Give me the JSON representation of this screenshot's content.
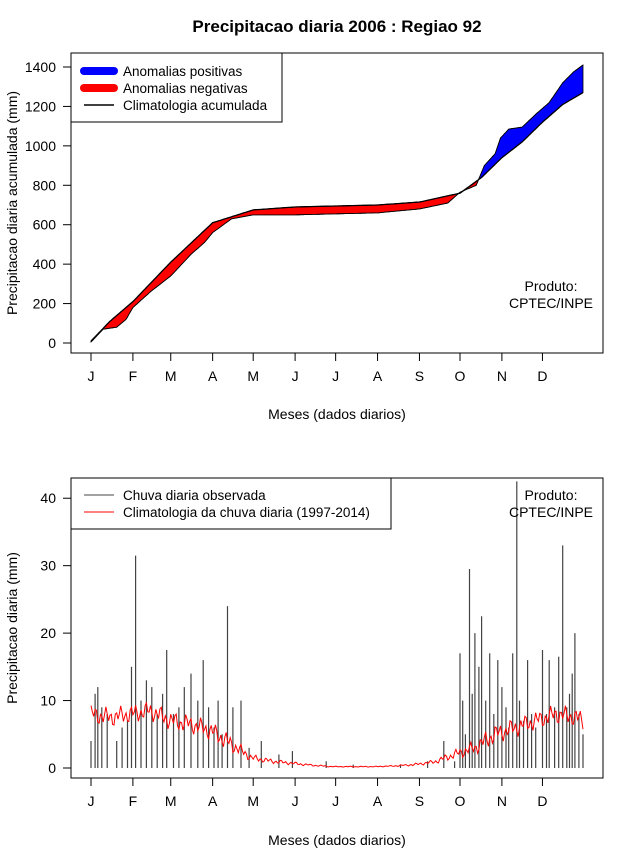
{
  "chart_data": [
    {
      "type": "area",
      "title": "Precipitacao diaria 2006 : Regiao 92",
      "xlabel": "Meses (dados diarios)",
      "ylabel": "Precipitacao diaria acumulada (mm)",
      "ylim": [
        0,
        1400
      ],
      "xlim_days": [
        1,
        365
      ],
      "yticks": [
        0,
        200,
        400,
        600,
        800,
        1000,
        1200,
        1400
      ],
      "month_ticks": [
        "J",
        "F",
        "M",
        "A",
        "M",
        "J",
        "J",
        "A",
        "S",
        "O",
        "N",
        "D"
      ],
      "legend": [
        "Anomalias positivas",
        "Anomalias negativas",
        "Climatologia acumulada"
      ],
      "colors": {
        "positive": "#0000ff",
        "negative": "#ff0000",
        "climatology": "#000000"
      },
      "annotation": [
        "Produto:",
        "CPTEC/INPE"
      ],
      "series": [
        {
          "name": "Climatologia acumulada",
          "x": [
            1,
            15,
            32,
            60,
            91,
            121,
            152,
            182,
            213,
            244,
            274,
            290,
            305,
            320,
            335,
            350,
            365
          ],
          "values": [
            10,
            110,
            210,
            410,
            610,
            675,
            690,
            695,
            700,
            715,
            760,
            840,
            940,
            1020,
            1120,
            1210,
            1270
          ]
        },
        {
          "name": "Precipitacao observada acumulada",
          "x": [
            1,
            10,
            20,
            27,
            32,
            45,
            60,
            75,
            85,
            91,
            105,
            121,
            152,
            182,
            213,
            244,
            265,
            274,
            286,
            292,
            300,
            304,
            310,
            320,
            330,
            340,
            350,
            358,
            365
          ],
          "values": [
            5,
            70,
            80,
            120,
            180,
            260,
            340,
            450,
            510,
            560,
            630,
            650,
            650,
            655,
            660,
            680,
            710,
            765,
            800,
            900,
            960,
            1040,
            1085,
            1095,
            1160,
            1220,
            1320,
            1375,
            1410
          ]
        }
      ]
    },
    {
      "type": "bar",
      "xlabel": "Meses (dados diarios)",
      "ylabel": "Precipitacao diaria (mm)",
      "ylim": [
        0,
        43
      ],
      "yticks": [
        0,
        10,
        20,
        30,
        40
      ],
      "month_ticks": [
        "J",
        "F",
        "M",
        "A",
        "M",
        "J",
        "J",
        "A",
        "S",
        "O",
        "N",
        "D"
      ],
      "legend": [
        "Chuva diaria observada",
        "Climatologia da chuva diaria (1997-2014)"
      ],
      "colors": {
        "observed": "#444444",
        "climatology": "#ff0000"
      },
      "annotation": [
        "Produto:",
        "CPTEC/INPE"
      ],
      "series": [
        {
          "name": "Chuva diaria observada",
          "x": [
            1,
            4,
            6,
            9,
            13,
            20,
            24,
            28,
            31,
            34,
            38,
            42,
            46,
            50,
            54,
            57,
            62,
            66,
            70,
            75,
            80,
            84,
            88,
            92,
            95,
            98,
            102,
            106,
            112,
            118,
            127,
            140,
            150,
            175,
            195,
            230,
            250,
            262,
            270,
            274,
            276,
            278,
            281,
            283,
            285,
            288,
            290,
            293,
            296,
            299,
            302,
            305,
            308,
            310,
            313,
            316,
            318,
            321,
            324,
            327,
            330,
            335,
            338,
            340,
            344,
            347,
            350,
            353,
            355,
            357,
            359,
            362,
            365
          ],
          "values": [
            4,
            11,
            12,
            9,
            8,
            4,
            6,
            7,
            15,
            31.5,
            10,
            13,
            12,
            8,
            11,
            17.5,
            8,
            9,
            12,
            14,
            10,
            16,
            9,
            6,
            10,
            5,
            24,
            9,
            10,
            3,
            4,
            2,
            2.5,
            1,
            0.5,
            0.5,
            1,
            4,
            1,
            17,
            10,
            5,
            29.5,
            11,
            20,
            15,
            22.5,
            10,
            17,
            8,
            16,
            12,
            9,
            6,
            17,
            42.5,
            10,
            7,
            16,
            8,
            6,
            17.5,
            8,
            16,
            9,
            16.5,
            33,
            9,
            11,
            14,
            20,
            8,
            5
          ]
        },
        {
          "name": "Climatologia da chuva diaria (1997-2014)",
          "x": [
            1,
            15,
            30,
            45,
            60,
            75,
            90,
            105,
            120,
            135,
            150,
            165,
            180,
            195,
            210,
            225,
            240,
            255,
            270,
            285,
            300,
            315,
            330,
            345,
            360,
            365
          ],
          "values": [
            8,
            7.5,
            8,
            8.5,
            7,
            6.5,
            5.5,
            3.5,
            1.5,
            1,
            0.7,
            0.4,
            0.2,
            0.2,
            0.2,
            0.3,
            0.5,
            0.9,
            2,
            3,
            5,
            6,
            7,
            8,
            7.5,
            7
          ]
        }
      ]
    }
  ]
}
